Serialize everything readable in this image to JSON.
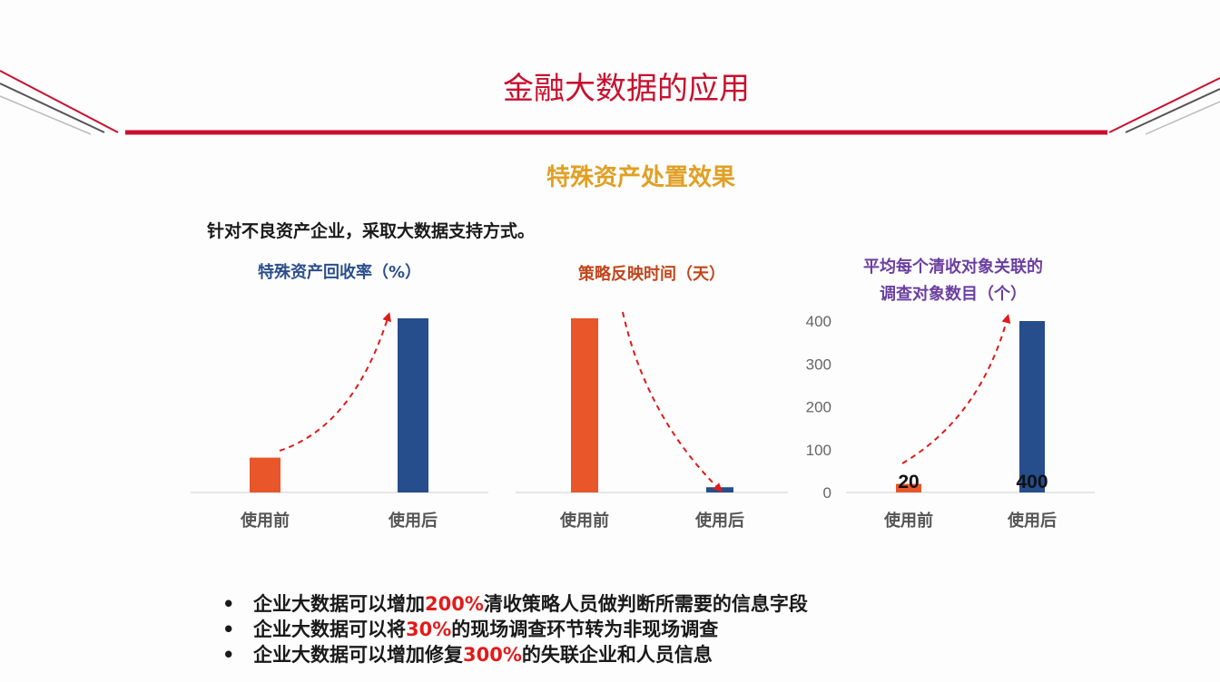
{
  "header": {
    "title": "金融大数据的应用",
    "subtitle": "特殊资产处置效果",
    "intro": "针对不良资产企业，采取大数据支持方式。"
  },
  "colors": {
    "brand_red": "#c8102e",
    "before": "#e8562a",
    "after": "#264d8c",
    "arrow": "#e01a1a",
    "highlight": "#e21b1b"
  },
  "chart_data": [
    {
      "type": "bar",
      "title": "特殊资产回收率（%）",
      "title_color": "#2b4f8c",
      "categories": [
        "使用前",
        "使用后"
      ],
      "values": [
        20,
        100
      ],
      "ylim": [
        0,
        100
      ],
      "y_axis_visible": false,
      "data_labels_visible": false,
      "trend_arrow": "up"
    },
    {
      "type": "bar",
      "title": "策略反映时间（天）",
      "title_color": "#c0461c",
      "categories": [
        "使用前",
        "使用后"
      ],
      "values": [
        100,
        3
      ],
      "ylim": [
        0,
        100
      ],
      "y_axis_visible": false,
      "data_labels_visible": false,
      "trend_arrow": "down"
    },
    {
      "type": "bar",
      "title": "平均每个清收对象关联的\n调查对象数目（个）",
      "title_lines": [
        "平均每个清收对象关联的",
        "调查对象数目（个）"
      ],
      "title_color": "#6b3fa0",
      "categories": [
        "使用前",
        "使用后"
      ],
      "values": [
        20,
        400
      ],
      "data_labels": [
        "20",
        "400"
      ],
      "ylim": [
        0,
        400
      ],
      "yticks": [
        0,
        100,
        200,
        300,
        400
      ],
      "y_axis_visible": true,
      "data_labels_visible": true,
      "trend_arrow": "up"
    }
  ],
  "bullets": [
    {
      "dot": "•",
      "pre": "企业大数据可以增加",
      "hl": "200%",
      "post": "清收策略人员做判断所需要的信息字段"
    },
    {
      "dot": "•",
      "pre": "企业大数据可以将",
      "hl": "30%",
      "post": "的现场调查环节转为非现场调查"
    },
    {
      "dot": "•",
      "pre": "企业大数据可以增加修复",
      "hl": "300%",
      "post": "的失联企业和人员信息"
    }
  ]
}
